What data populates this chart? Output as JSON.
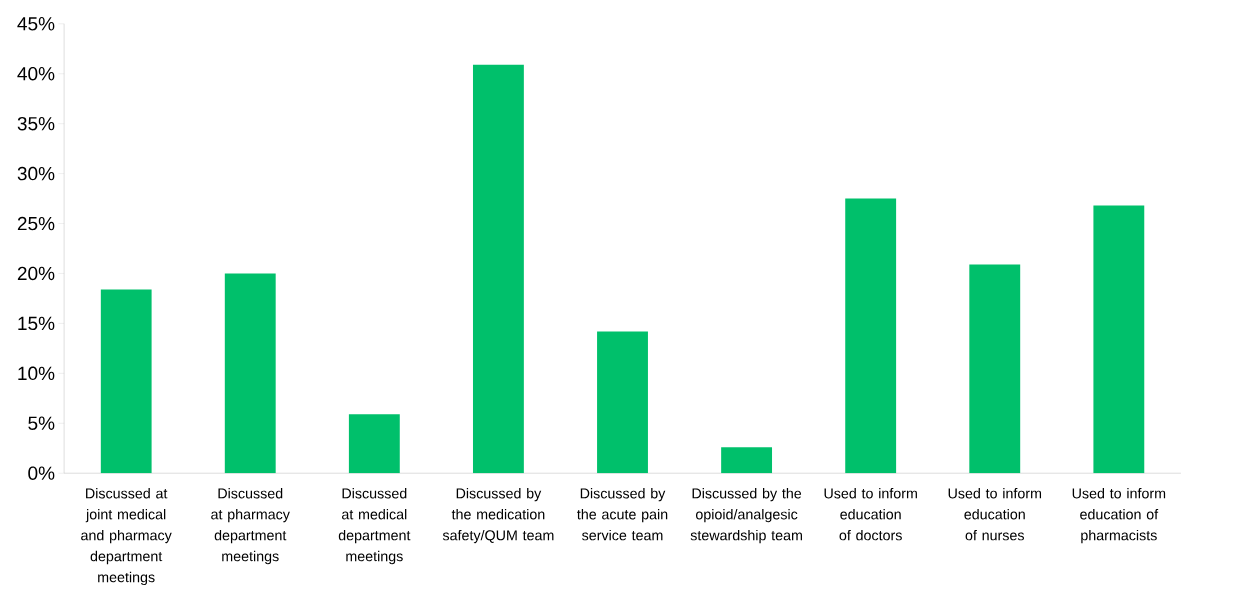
{
  "chart_data": {
    "type": "bar",
    "categories": [
      "Discussed at joint medical and pharmacy department meetings",
      "Discussed at pharmacy department meetings",
      "Discussed at medical department meetings",
      "Discussed by the medication safety/QUM team",
      "Discussed by the acute pain service team",
      "Discussed by the opioid/analgesic stewardship team",
      "Used to inform education of doctors",
      "Used to inform education of nurses",
      "Used to inform education of pharmacists"
    ],
    "values": [
      18.4,
      20.0,
      5.9,
      40.9,
      14.2,
      2.6,
      27.5,
      20.9,
      26.8
    ],
    "color": "#00c06b",
    "ylim": [
      0,
      45
    ],
    "yticks": [
      {
        "value": 0,
        "label": "0%"
      },
      {
        "value": 5,
        "label": "5%"
      },
      {
        "value": 10,
        "label": "10%"
      },
      {
        "value": 15,
        "label": "15%"
      },
      {
        "value": 20,
        "label": "20%"
      },
      {
        "value": 25,
        "label": "25%"
      },
      {
        "value": 30,
        "label": "30%"
      },
      {
        "value": 35,
        "label": "35%"
      },
      {
        "value": 40,
        "label": "40%"
      },
      {
        "value": 45,
        "label": "45%"
      }
    ]
  }
}
